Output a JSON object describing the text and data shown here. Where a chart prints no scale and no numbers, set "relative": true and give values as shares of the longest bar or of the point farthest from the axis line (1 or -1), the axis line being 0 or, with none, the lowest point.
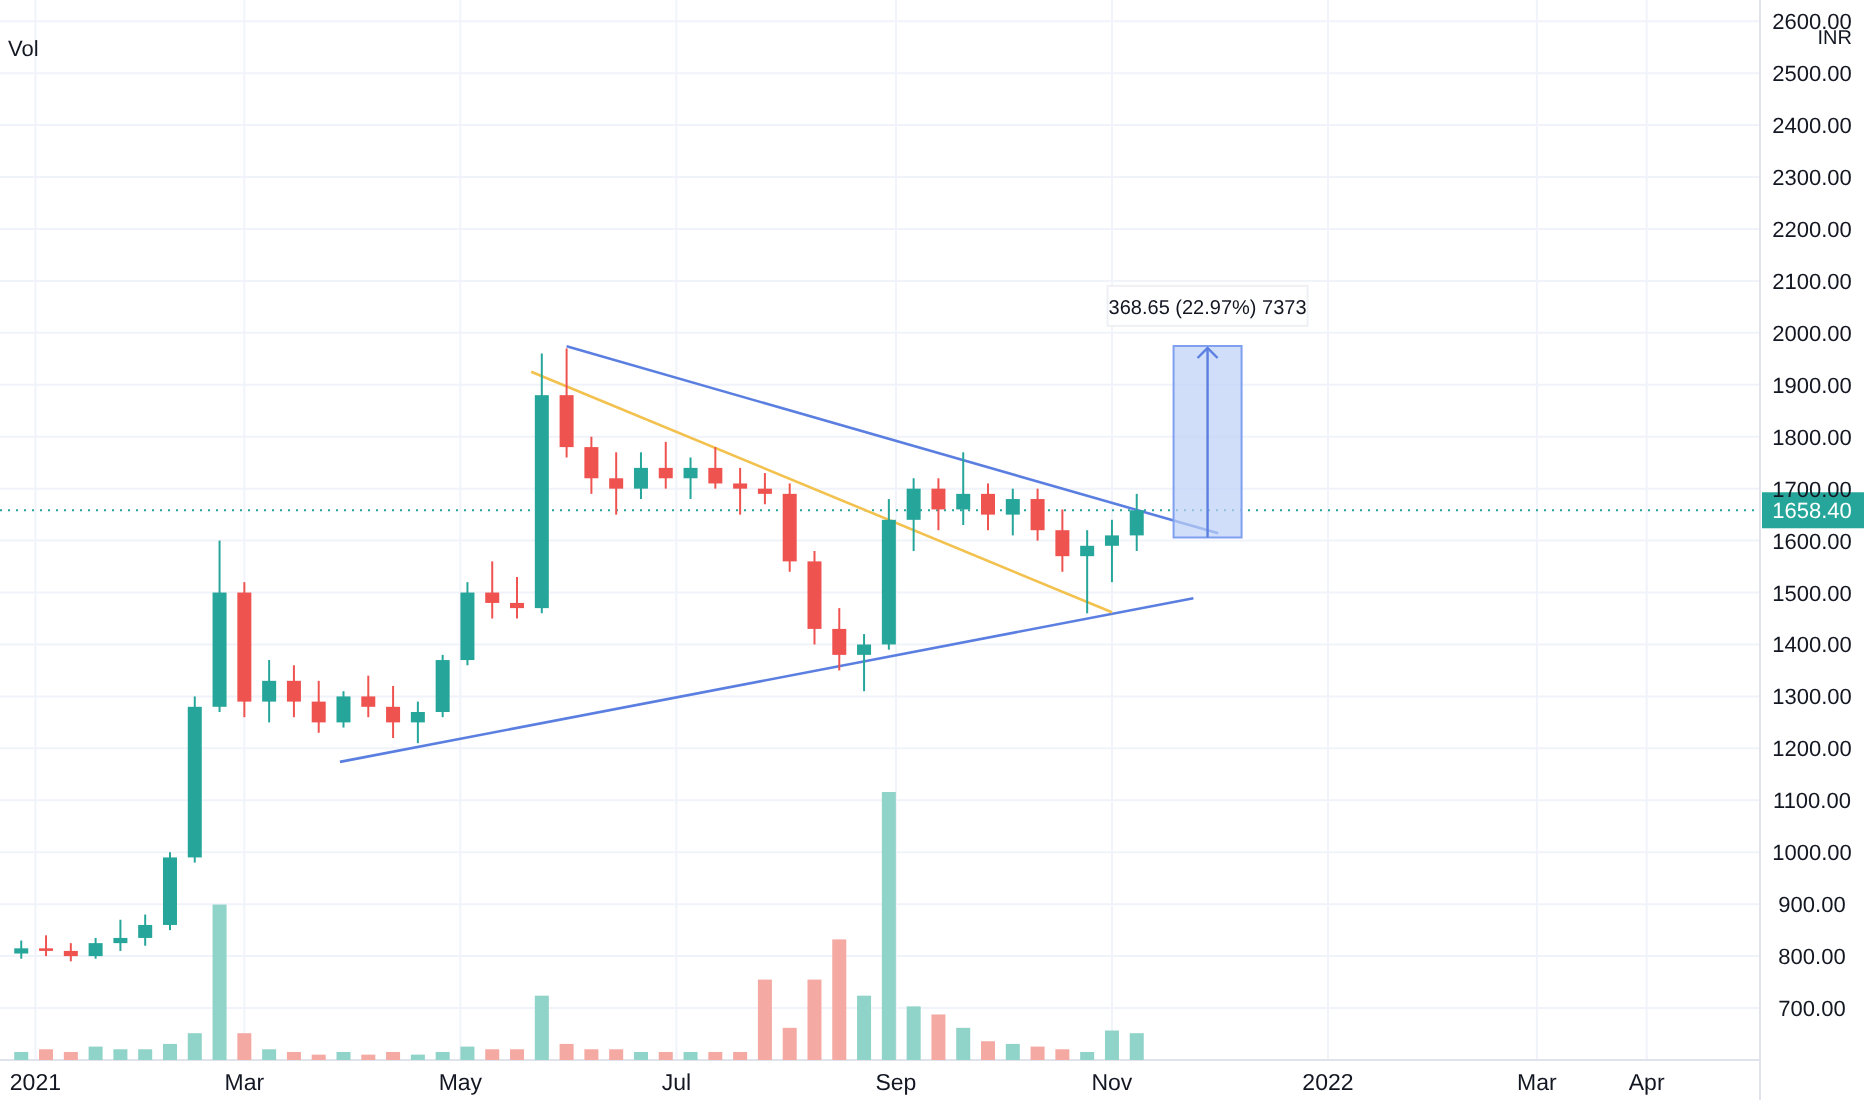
{
  "chart_data": [
    {
      "type": "candlestick",
      "x": [
        "2020-12-28",
        "2021-01-04",
        "2021-01-11",
        "2021-01-18",
        "2021-01-25",
        "2021-02-01",
        "2021-02-08",
        "2021-02-15",
        "2021-02-22",
        "2021-03-01",
        "2021-03-08",
        "2021-03-15",
        "2021-03-22",
        "2021-03-29",
        "2021-04-05",
        "2021-04-12",
        "2021-04-19",
        "2021-04-26",
        "2021-05-03",
        "2021-05-10",
        "2021-05-17",
        "2021-05-24",
        "2021-05-31",
        "2021-06-07",
        "2021-06-14",
        "2021-06-21",
        "2021-06-28",
        "2021-07-05",
        "2021-07-12",
        "2021-07-19",
        "2021-07-26",
        "2021-08-02",
        "2021-08-09",
        "2021-08-16",
        "2021-08-23",
        "2021-08-30",
        "2021-09-06",
        "2021-09-13",
        "2021-09-20",
        "2021-09-27",
        "2021-10-04",
        "2021-10-11",
        "2021-10-18",
        "2021-10-25",
        "2021-11-01",
        "2021-11-08"
      ],
      "ohlc": [
        [
          805,
          830,
          795,
          815
        ],
        [
          815,
          840,
          800,
          810
        ],
        [
          810,
          825,
          790,
          800
        ],
        [
          800,
          835,
          795,
          825
        ],
        [
          825,
          870,
          810,
          835
        ],
        [
          835,
          880,
          820,
          860
        ],
        [
          860,
          1000,
          850,
          990
        ],
        [
          990,
          1300,
          980,
          1280
        ],
        [
          1280,
          1600,
          1270,
          1500
        ],
        [
          1500,
          1520,
          1260,
          1290
        ],
        [
          1290,
          1370,
          1250,
          1330
        ],
        [
          1330,
          1360,
          1260,
          1290
        ],
        [
          1290,
          1330,
          1230,
          1250
        ],
        [
          1250,
          1310,
          1240,
          1300
        ],
        [
          1300,
          1340,
          1260,
          1280
        ],
        [
          1280,
          1320,
          1220,
          1250
        ],
        [
          1250,
          1290,
          1210,
          1270
        ],
        [
          1270,
          1380,
          1260,
          1370
        ],
        [
          1370,
          1520,
          1360,
          1500
        ],
        [
          1500,
          1560,
          1450,
          1480
        ],
        [
          1480,
          1530,
          1450,
          1470
        ],
        [
          1470,
          1960,
          1460,
          1880
        ],
        [
          1880,
          1970,
          1760,
          1780
        ],
        [
          1780,
          1800,
          1690,
          1720
        ],
        [
          1720,
          1770,
          1650,
          1700
        ],
        [
          1700,
          1770,
          1680,
          1740
        ],
        [
          1740,
          1790,
          1700,
          1720
        ],
        [
          1720,
          1760,
          1680,
          1740
        ],
        [
          1740,
          1780,
          1700,
          1710
        ],
        [
          1710,
          1740,
          1650,
          1700
        ],
        [
          1700,
          1730,
          1670,
          1690
        ],
        [
          1690,
          1710,
          1540,
          1560
        ],
        [
          1560,
          1580,
          1400,
          1430
        ],
        [
          1430,
          1470,
          1350,
          1380
        ],
        [
          1380,
          1420,
          1310,
          1400
        ],
        [
          1400,
          1680,
          1390,
          1640
        ],
        [
          1640,
          1720,
          1580,
          1700
        ],
        [
          1700,
          1720,
          1620,
          1660
        ],
        [
          1660,
          1770,
          1630,
          1690
        ],
        [
          1690,
          1710,
          1620,
          1650
        ],
        [
          1650,
          1700,
          1610,
          1680
        ],
        [
          1680,
          1700,
          1600,
          1620
        ],
        [
          1620,
          1660,
          1540,
          1570
        ],
        [
          1570,
          1620,
          1460,
          1590
        ],
        [
          1590,
          1640,
          1520,
          1610
        ],
        [
          1610,
          1690,
          1580,
          1658.4
        ]
      ],
      "series": [
        {
          "type": "line",
          "color": "#5b7fe0",
          "x": [
            "2021-05-31",
            "2021-12-01"
          ],
          "values": [
            1974,
            1614
          ]
        },
        {
          "type": "line",
          "color": "#5b7fe0",
          "x": [
            "2021-03-28",
            "2021-11-24"
          ],
          "values": [
            1174,
            1489
          ]
        },
        {
          "type": "line",
          "color": "#f2c14e",
          "x": [
            "2021-05-21",
            "2021-11-01"
          ],
          "values": [
            1925,
            1462
          ]
        },
        {
          "type": "bar",
          "color": "#bcd0f7",
          "x": [
            "2021-11-28"
          ],
          "values": [
            368.65
          ],
          "base": [
            1606
          ]
        }
      ],
      "annotations": [
        {
          "text": "368.65 (22.97%) 7373",
          "x": "2021-11-28",
          "y": 1975
        },
        "INR"
      ],
      "ref_lines": [
        {
          "axis": "y",
          "value": 1658.4,
          "label": "1658.40",
          "color": "#26a69a",
          "line_style": "dotted"
        }
      ],
      "xlim": [
        "2020-12-22",
        "2022-05-03"
      ],
      "xticks": [
        {
          "value": "2021-01-01",
          "label": "2021"
        },
        {
          "value": "2021-03-01",
          "label": "Mar"
        },
        {
          "value": "2021-05-01",
          "label": "May"
        },
        {
          "value": "2021-07-01",
          "label": "Jul"
        },
        {
          "value": "2021-09-01",
          "label": "Sep"
        },
        {
          "value": "2021-11-01",
          "label": "Nov"
        },
        {
          "value": "2022-01-01",
          "label": "2022"
        },
        {
          "value": "2022-03-01",
          "label": "Mar"
        },
        {
          "value": "2022-04-01",
          "label": "Apr"
        }
      ],
      "ylim": [
        600,
        2610
      ],
      "yticks": [
        {
          "value": 700,
          "label": "700.00"
        },
        {
          "value": 800,
          "label": "800.00"
        },
        {
          "value": 900,
          "label": "900.00"
        },
        {
          "value": 1000,
          "label": "1000.00"
        },
        {
          "value": 1100,
          "label": "1100.00"
        },
        {
          "value": 1200,
          "label": "1200.00"
        },
        {
          "value": 1300,
          "label": "1300.00"
        },
        {
          "value": 1400,
          "label": "1400.00"
        },
        {
          "value": 1500,
          "label": "1500.00"
        },
        {
          "value": 1600,
          "label": "1600.00"
        },
        {
          "value": 1700,
          "label": "1700.00"
        },
        {
          "value": 1800,
          "label": "1800.00"
        },
        {
          "value": 1900,
          "label": "1900.00"
        },
        {
          "value": 2000,
          "label": "2000.00"
        },
        {
          "value": 2100,
          "label": "2100.00"
        },
        {
          "value": 2200,
          "label": "2200.00"
        },
        {
          "value": 2300,
          "label": "2300.00"
        },
        {
          "value": 2400,
          "label": "2400.00"
        },
        {
          "value": 2500,
          "label": "2500.00"
        },
        {
          "value": 2600,
          "label": "2600.00"
        }
      ],
      "grid": true
    },
    {
      "type": "bar",
      "title": "Vol",
      "relative": true,
      "x": [
        "2020-12-28",
        "2021-01-04",
        "2021-01-11",
        "2021-01-18",
        "2021-01-25",
        "2021-02-01",
        "2021-02-08",
        "2021-02-15",
        "2021-02-22",
        "2021-03-01",
        "2021-03-08",
        "2021-03-15",
        "2021-03-22",
        "2021-03-29",
        "2021-04-05",
        "2021-04-12",
        "2021-04-19",
        "2021-04-26",
        "2021-05-03",
        "2021-05-10",
        "2021-05-17",
        "2021-05-24",
        "2021-05-31",
        "2021-06-07",
        "2021-06-14",
        "2021-06-21",
        "2021-06-28",
        "2021-07-05",
        "2021-07-12",
        "2021-07-19",
        "2021-07-26",
        "2021-08-02",
        "2021-08-09",
        "2021-08-16",
        "2021-08-23",
        "2021-08-30",
        "2021-09-06",
        "2021-09-13",
        "2021-09-20",
        "2021-09-27",
        "2021-10-04",
        "2021-10-11",
        "2021-10-18",
        "2021-10-25",
        "2021-11-01",
        "2021-11-08"
      ],
      "values": [
        0.03,
        0.04,
        0.03,
        0.05,
        0.04,
        0.04,
        0.06,
        0.1,
        0.58,
        0.1,
        0.04,
        0.03,
        0.02,
        0.03,
        0.02,
        0.03,
        0.02,
        0.03,
        0.05,
        0.04,
        0.04,
        0.24,
        0.06,
        0.04,
        0.04,
        0.03,
        0.03,
        0.03,
        0.03,
        0.03,
        0.3,
        0.12,
        0.3,
        0.45,
        0.24,
        1,
        0.2,
        0.17,
        0.12,
        0.07,
        0.06,
        0.05,
        0.04,
        0.03,
        0.11,
        0.1
      ],
      "colors": [
        "#8fd3c9",
        "#f5a9a3",
        "#f5a9a3",
        "#8fd3c9",
        "#8fd3c9",
        "#8fd3c9",
        "#8fd3c9",
        "#8fd3c9",
        "#8fd3c9",
        "#f5a9a3",
        "#8fd3c9",
        "#f5a9a3",
        "#f5a9a3",
        "#8fd3c9",
        "#f5a9a3",
        "#f5a9a3",
        "#8fd3c9",
        "#8fd3c9",
        "#8fd3c9",
        "#f5a9a3",
        "#f5a9a3",
        "#8fd3c9",
        "#f5a9a3",
        "#f5a9a3",
        "#f5a9a3",
        "#8fd3c9",
        "#f5a9a3",
        "#8fd3c9",
        "#f5a9a3",
        "#f5a9a3",
        "#f5a9a3",
        "#f5a9a3",
        "#f5a9a3",
        "#f5a9a3",
        "#8fd3c9",
        "#8fd3c9",
        "#8fd3c9",
        "#f5a9a3",
        "#8fd3c9",
        "#f5a9a3",
        "#8fd3c9",
        "#f5a9a3",
        "#f5a9a3",
        "#8fd3c9",
        "#8fd3c9",
        "#8fd3c9"
      ],
      "xlim": [
        "2020-12-22",
        "2022-05-03"
      ]
    }
  ]
}
